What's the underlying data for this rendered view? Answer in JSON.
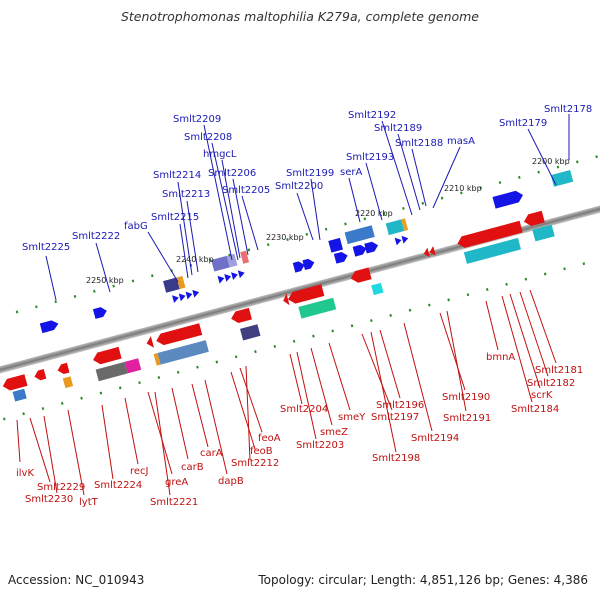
{
  "title": "Stenotrophomonas maltophilia K279a, complete genome",
  "footer": {
    "accession": "Accession: NC_010943",
    "summary": "Topology: circular; Length: 4,851,126 bp; Genes: 4,386"
  },
  "colors": {
    "forward_label": "#1a1ab4",
    "reverse_label": "#c01010",
    "tick": "#2a8a2a",
    "backbone": "#777777"
  },
  "kbp_ticks": [
    "2250 kbp",
    "2240 kbp",
    "2230 kbp",
    "2220 kbp",
    "2210 kbp",
    "2200 kbp"
  ],
  "forward_labels": [
    "Smlt2225",
    "Smlt2222",
    "fabG",
    "Smlt2215",
    "Smlt2213",
    "Smlt2214",
    "Smlt2209",
    "Smlt2208",
    "hmgcL",
    "Smlt2206",
    "Smlt2205",
    "Smlt2199",
    "Smlt2200",
    "serA",
    "Smlt2193",
    "Smlt2192",
    "Smlt2189",
    "Smlt2188",
    "masA",
    "Smlt2179",
    "Smlt2178"
  ],
  "reverse_labels": [
    "ilvK",
    "Smlt2229",
    "Smlt2230",
    "lytT",
    "Smlt2224",
    "recJ",
    "greA",
    "Smlt2221",
    "carB",
    "carA",
    "dapB",
    "feoB",
    "feoA",
    "Smlt2212",
    "Smlt2204",
    "Smlt2203",
    "smeZ",
    "smeY",
    "Smlt2197",
    "Smlt2198",
    "Smlt2196",
    "Smlt2194",
    "Smlt2190",
    "Smlt2191",
    "bmnA",
    "Smlt2184",
    "scrK",
    "Smlt2182",
    "Smlt2181"
  ]
}
